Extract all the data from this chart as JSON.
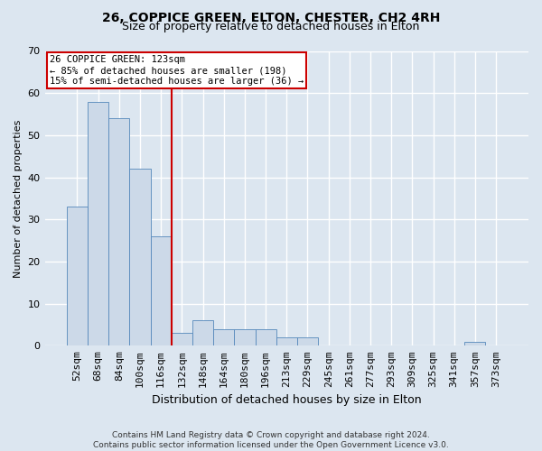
{
  "title1": "26, COPPICE GREEN, ELTON, CHESTER, CH2 4RH",
  "title2": "Size of property relative to detached houses in Elton",
  "xlabel": "Distribution of detached houses by size in Elton",
  "ylabel": "Number of detached properties",
  "footnote": "Contains HM Land Registry data © Crown copyright and database right 2024.\nContains public sector information licensed under the Open Government Licence v3.0.",
  "categories": [
    "52sqm",
    "68sqm",
    "84sqm",
    "100sqm",
    "116sqm",
    "132sqm",
    "148sqm",
    "164sqm",
    "180sqm",
    "196sqm",
    "213sqm",
    "229sqm",
    "245sqm",
    "261sqm",
    "277sqm",
    "293sqm",
    "309sqm",
    "325sqm",
    "341sqm",
    "357sqm",
    "373sqm"
  ],
  "values": [
    33,
    58,
    54,
    42,
    26,
    3,
    6,
    4,
    4,
    4,
    2,
    2,
    0,
    0,
    0,
    0,
    0,
    0,
    0,
    1,
    0
  ],
  "bar_color": "#ccd9e8",
  "bar_edge_color": "#5588bb",
  "vline_color": "#cc0000",
  "annotation_text": "26 COPPICE GREEN: 123sqm\n← 85% of detached houses are smaller (198)\n15% of semi-detached houses are larger (36) →",
  "annotation_box_color": "white",
  "annotation_box_edge_color": "#cc0000",
  "ylim": [
    0,
    70
  ],
  "yticks": [
    0,
    10,
    20,
    30,
    40,
    50,
    60,
    70
  ],
  "bg_color": "#dce6f0",
  "plot_bg_color": "#dce6f0",
  "grid_color": "white",
  "title1_fontsize": 10,
  "title2_fontsize": 9,
  "xlabel_fontsize": 9,
  "ylabel_fontsize": 8,
  "tick_fontsize": 8,
  "footnote_fontsize": 6.5
}
